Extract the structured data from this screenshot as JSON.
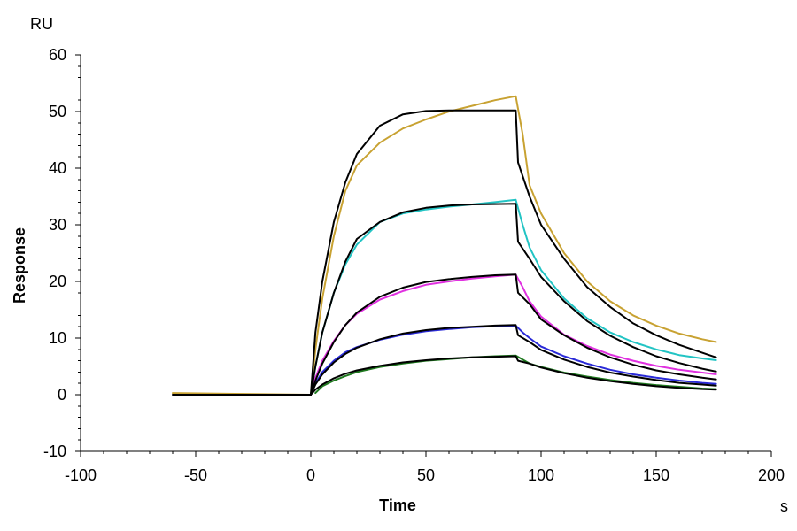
{
  "chart_data": {
    "type": "line",
    "title": "",
    "xlabel": "Time",
    "ylabel": "Response",
    "x_unit": "s",
    "y_unit": "RU",
    "xlim": [
      -100,
      200
    ],
    "ylim": [
      -10,
      60
    ],
    "x_ticks": [
      -100,
      -50,
      0,
      50,
      100,
      150,
      200
    ],
    "y_ticks": [
      -10,
      0,
      10,
      20,
      30,
      40,
      50,
      60
    ],
    "x_tick_labels": [
      "-100",
      "-50",
      "0",
      "50",
      "100",
      "150",
      "200"
    ],
    "y_tick_labels": [
      "-10",
      "0",
      "10",
      "20",
      "30",
      "40",
      "50",
      "60"
    ],
    "grid": false,
    "legend": "none",
    "series": [
      {
        "color": "#c8a232",
        "points": [
          [
            -60,
            0.3
          ],
          [
            -20,
            0.1
          ],
          [
            0,
            0
          ],
          [
            2,
            8
          ],
          [
            5,
            17
          ],
          [
            10,
            28
          ],
          [
            15,
            36
          ],
          [
            20,
            40.5
          ],
          [
            30,
            44.5
          ],
          [
            40,
            47
          ],
          [
            50,
            48.6
          ],
          [
            60,
            50
          ],
          [
            70,
            51
          ],
          [
            80,
            52
          ],
          [
            89,
            52.7
          ],
          [
            92,
            46
          ],
          [
            95,
            37
          ],
          [
            100,
            32
          ],
          [
            110,
            25
          ],
          [
            120,
            20
          ],
          [
            130,
            16.5
          ],
          [
            140,
            14
          ],
          [
            150,
            12.2
          ],
          [
            160,
            10.8
          ],
          [
            170,
            9.8
          ],
          [
            176,
            9.3
          ]
        ]
      },
      {
        "color": "#22c4c4",
        "points": [
          [
            0,
            0
          ],
          [
            2,
            5
          ],
          [
            5,
            11
          ],
          [
            10,
            18
          ],
          [
            15,
            23
          ],
          [
            20,
            26.5
          ],
          [
            30,
            30.5
          ],
          [
            40,
            32
          ],
          [
            50,
            32.7
          ],
          [
            60,
            33.2
          ],
          [
            70,
            33.6
          ],
          [
            80,
            34
          ],
          [
            89,
            34.4
          ],
          [
            92,
            30
          ],
          [
            95,
            26
          ],
          [
            100,
            22
          ],
          [
            110,
            17
          ],
          [
            120,
            13.5
          ],
          [
            130,
            11
          ],
          [
            140,
            9.3
          ],
          [
            150,
            8
          ],
          [
            160,
            7
          ],
          [
            170,
            6.4
          ],
          [
            176,
            6.1
          ]
        ]
      },
      {
        "color": "#e030e0",
        "points": [
          [
            0,
            0
          ],
          [
            2,
            3
          ],
          [
            5,
            6
          ],
          [
            10,
            9.5
          ],
          [
            15,
            12.3
          ],
          [
            20,
            14.3
          ],
          [
            30,
            16.8
          ],
          [
            40,
            18.3
          ],
          [
            50,
            19.4
          ],
          [
            60,
            20
          ],
          [
            70,
            20.5
          ],
          [
            80,
            20.9
          ],
          [
            89,
            21.2
          ],
          [
            92,
            19
          ],
          [
            95,
            16.5
          ],
          [
            100,
            13.8
          ],
          [
            110,
            10.6
          ],
          [
            120,
            8.6
          ],
          [
            130,
            7.1
          ],
          [
            140,
            6
          ],
          [
            150,
            5.1
          ],
          [
            160,
            4.4
          ],
          [
            170,
            3.9
          ],
          [
            176,
            3.6
          ]
        ]
      },
      {
        "color": "#2a2ad8",
        "points": [
          [
            0,
            0
          ],
          [
            2,
            2
          ],
          [
            5,
            4
          ],
          [
            10,
            6
          ],
          [
            15,
            7.5
          ],
          [
            20,
            8.4
          ],
          [
            30,
            9.7
          ],
          [
            40,
            10.6
          ],
          [
            50,
            11.2
          ],
          [
            60,
            11.6
          ],
          [
            70,
            11.9
          ],
          [
            80,
            12.1
          ],
          [
            89,
            12.2
          ],
          [
            92,
            11
          ],
          [
            95,
            10
          ],
          [
            100,
            8.5
          ],
          [
            110,
            6.8
          ],
          [
            120,
            5.5
          ],
          [
            130,
            4.4
          ],
          [
            140,
            3.6
          ],
          [
            150,
            3
          ],
          [
            160,
            2.5
          ],
          [
            170,
            2.1
          ],
          [
            176,
            1.9
          ]
        ]
      },
      {
        "color": "#1f7a1f",
        "points": [
          [
            2,
            0.3
          ],
          [
            5,
            1.5
          ],
          [
            10,
            2.5
          ],
          [
            15,
            3.3
          ],
          [
            20,
            4
          ],
          [
            30,
            4.9
          ],
          [
            40,
            5.5
          ],
          [
            50,
            6
          ],
          [
            60,
            6.3
          ],
          [
            70,
            6.6
          ],
          [
            80,
            6.8
          ],
          [
            89,
            6.9
          ],
          [
            92,
            6.2
          ],
          [
            95,
            5.5
          ],
          [
            100,
            4.9
          ],
          [
            110,
            3.9
          ],
          [
            120,
            3.2
          ],
          [
            130,
            2.6
          ],
          [
            140,
            2.1
          ],
          [
            150,
            1.7
          ],
          [
            160,
            1.4
          ],
          [
            170,
            1.1
          ],
          [
            176,
            1.0
          ]
        ]
      }
    ],
    "fits": [
      {
        "color": "#000000",
        "points": [
          [
            -60,
            0
          ],
          [
            0,
            0
          ],
          [
            2,
            11
          ],
          [
            5,
            20
          ],
          [
            10,
            30.5
          ],
          [
            15,
            37.5
          ],
          [
            20,
            42.5
          ],
          [
            30,
            47.5
          ],
          [
            40,
            49.5
          ],
          [
            50,
            50.1
          ],
          [
            60,
            50.2
          ],
          [
            89,
            50.2
          ],
          [
            90,
            41
          ],
          [
            95,
            35
          ],
          [
            100,
            30
          ],
          [
            110,
            24
          ],
          [
            120,
            19
          ],
          [
            130,
            15.5
          ],
          [
            140,
            12.6
          ],
          [
            150,
            10.5
          ],
          [
            160,
            8.8
          ],
          [
            170,
            7.4
          ],
          [
            176,
            6.6
          ]
        ]
      },
      {
        "color": "#000000",
        "points": [
          [
            0,
            0
          ],
          [
            2,
            5
          ],
          [
            5,
            11
          ],
          [
            10,
            18
          ],
          [
            15,
            23.5
          ],
          [
            20,
            27.5
          ],
          [
            30,
            30.5
          ],
          [
            40,
            32.2
          ],
          [
            50,
            33
          ],
          [
            60,
            33.4
          ],
          [
            70,
            33.6
          ],
          [
            89,
            33.7
          ],
          [
            90,
            27
          ],
          [
            95,
            24
          ],
          [
            100,
            20.8
          ],
          [
            110,
            16.5
          ],
          [
            120,
            13
          ],
          [
            130,
            10.4
          ],
          [
            140,
            8.4
          ],
          [
            150,
            6.8
          ],
          [
            160,
            5.6
          ],
          [
            170,
            4.6
          ],
          [
            176,
            4.1
          ]
        ]
      },
      {
        "color": "#000000",
        "points": [
          [
            0,
            0
          ],
          [
            2,
            2.5
          ],
          [
            5,
            5.5
          ],
          [
            10,
            9.3
          ],
          [
            15,
            12.3
          ],
          [
            20,
            14.5
          ],
          [
            30,
            17.3
          ],
          [
            40,
            18.9
          ],
          [
            50,
            19.9
          ],
          [
            60,
            20.4
          ],
          [
            70,
            20.8
          ],
          [
            80,
            21.1
          ],
          [
            89,
            21.2
          ],
          [
            90,
            18
          ],
          [
            95,
            16
          ],
          [
            100,
            13.3
          ],
          [
            110,
            10.5
          ],
          [
            120,
            8.3
          ],
          [
            130,
            6.6
          ],
          [
            140,
            5.3
          ],
          [
            150,
            4.3
          ],
          [
            160,
            3.6
          ],
          [
            170,
            3
          ],
          [
            176,
            2.7
          ]
        ]
      },
      {
        "color": "#000000",
        "points": [
          [
            0,
            0
          ],
          [
            2,
            1.8
          ],
          [
            5,
            3.6
          ],
          [
            10,
            5.7
          ],
          [
            15,
            7.2
          ],
          [
            20,
            8.3
          ],
          [
            30,
            9.8
          ],
          [
            40,
            10.8
          ],
          [
            50,
            11.4
          ],
          [
            60,
            11.8
          ],
          [
            70,
            12
          ],
          [
            80,
            12.2
          ],
          [
            89,
            12.3
          ],
          [
            90,
            10.5
          ],
          [
            95,
            9.3
          ],
          [
            100,
            7.9
          ],
          [
            110,
            6.2
          ],
          [
            120,
            4.9
          ],
          [
            130,
            3.9
          ],
          [
            140,
            3.2
          ],
          [
            150,
            2.6
          ],
          [
            160,
            2.1
          ],
          [
            170,
            1.8
          ],
          [
            176,
            1.6
          ]
        ]
      },
      {
        "color": "#000000",
        "points": [
          [
            0,
            0
          ],
          [
            2,
            0.9
          ],
          [
            5,
            1.8
          ],
          [
            10,
            2.9
          ],
          [
            15,
            3.7
          ],
          [
            20,
            4.3
          ],
          [
            30,
            5.1
          ],
          [
            40,
            5.7
          ],
          [
            50,
            6.1
          ],
          [
            60,
            6.4
          ],
          [
            70,
            6.6
          ],
          [
            80,
            6.7
          ],
          [
            89,
            6.8
          ],
          [
            90,
            6
          ],
          [
            95,
            5.5
          ],
          [
            100,
            4.8
          ],
          [
            110,
            3.8
          ],
          [
            120,
            3
          ],
          [
            130,
            2.4
          ],
          [
            140,
            1.9
          ],
          [
            150,
            1.5
          ],
          [
            160,
            1.2
          ],
          [
            170,
            1
          ],
          [
            176,
            0.9
          ]
        ]
      }
    ]
  }
}
